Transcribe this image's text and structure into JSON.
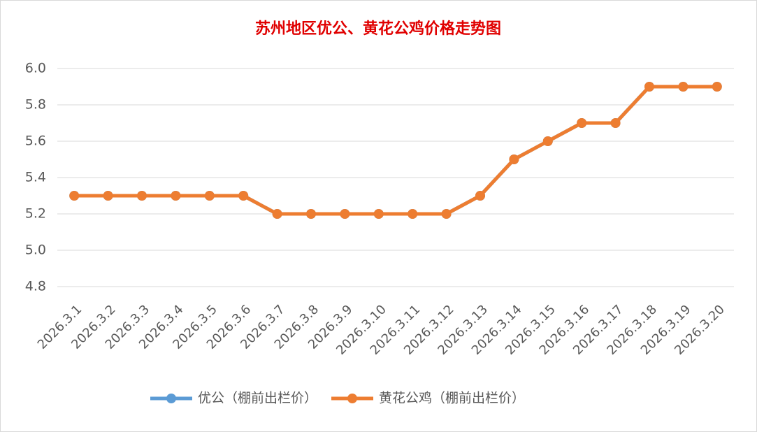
{
  "chart_data": {
    "type": "line",
    "title": "苏州地区优公、黄花公鸡价格走势图",
    "categories": [
      "2026.3.1",
      "2026.3.2",
      "2026.3.3",
      "2026.3.4",
      "2026.3.5",
      "2026.3.6",
      "2026.3.7",
      "2026.3.8",
      "2026.3.9",
      "2026.3.10",
      "2026.3.11",
      "2026.3.12",
      "2026.3.13",
      "2026.3.14",
      "2026.3.15",
      "2026.3.16",
      "2026.3.17",
      "2026.3.18",
      "2026.3.19",
      "2026.3.20"
    ],
    "series": [
      {
        "name": "优公（棚前出栏价）",
        "color": "#5b9bd5",
        "values": [
          5.3,
          5.3,
          5.3,
          5.3,
          5.3,
          5.3,
          5.2,
          5.2,
          5.2,
          5.2,
          5.2,
          5.2,
          5.3,
          5.5,
          5.6,
          5.7,
          5.7,
          5.9,
          5.9,
          5.9
        ]
      },
      {
        "name": "黄花公鸡（棚前出栏价）",
        "color": "#ed7d31",
        "values": [
          5.3,
          5.3,
          5.3,
          5.3,
          5.3,
          5.3,
          5.2,
          5.2,
          5.2,
          5.2,
          5.2,
          5.2,
          5.3,
          5.5,
          5.6,
          5.7,
          5.7,
          5.9,
          5.9,
          5.9
        ]
      }
    ],
    "ylim": [
      4.8,
      6.0
    ],
    "yticks": [
      4.8,
      {
        "value": 5.0,
        "label": "5.0"
      },
      5.2,
      5.4,
      5.6,
      5.8,
      {
        "value": 6.0,
        "label": "6.0"
      }
    ],
    "grid": true,
    "legend": "bottom"
  }
}
